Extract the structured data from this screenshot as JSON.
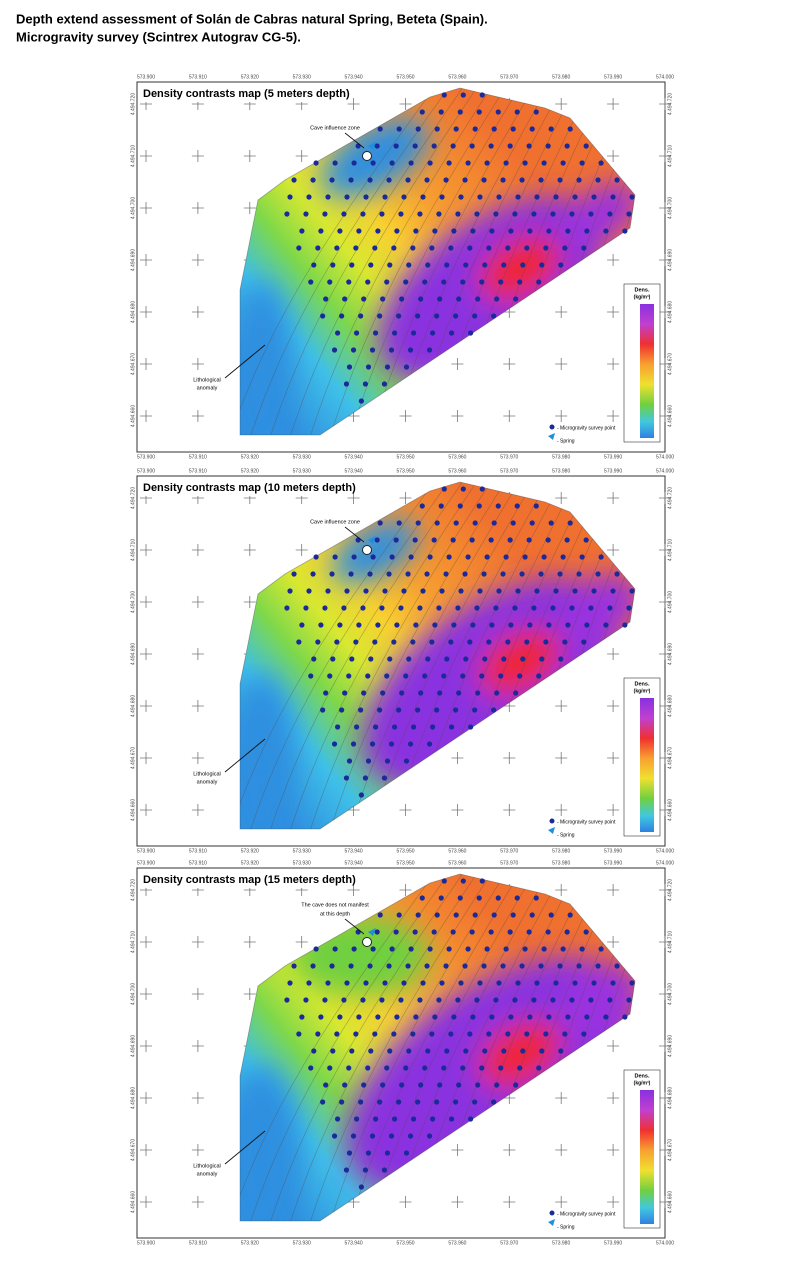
{
  "header": {
    "title_lines": [
      "Depth extend assessment of Solán de Cabras natural Spring, Beteta (Spain).",
      "Microgravity survey (Scintrex Autograv CG-5)."
    ]
  },
  "x_ticks": [
    "573.900",
    "573.910",
    "573.920",
    "573.930",
    "573.940",
    "573.950",
    "573.960",
    "573.970",
    "573.980",
    "573.990",
    "574.000"
  ],
  "y_ticks": [
    "4.494.720",
    "4.494.710",
    "4.494.700",
    "4.494.690",
    "4.494.680",
    "4.494.670",
    "4.494.660"
  ],
  "legend": {
    "title": "Dens.",
    "unit": "(kg/m³)",
    "survey_point": "- Microgravity survey point",
    "spring": "- Spring"
  },
  "panels": [
    {
      "title": "Density contrasts map (5 meters depth)",
      "cave_note": [
        "Cave influence zone"
      ],
      "anomaly_note": [
        "Lithological",
        "anomaly"
      ]
    },
    {
      "title": "Density contrasts map (10 meters depth)",
      "cave_note": [
        "Cave influence zone"
      ],
      "anomaly_note": [
        "Lithological",
        "anomaly"
      ]
    },
    {
      "title": "Density contrasts map (15 meters depth)",
      "cave_note": [
        "The cave does not manifest",
        "at this depth"
      ],
      "anomaly_note": [
        "Lithological",
        "anomaly"
      ]
    }
  ]
}
